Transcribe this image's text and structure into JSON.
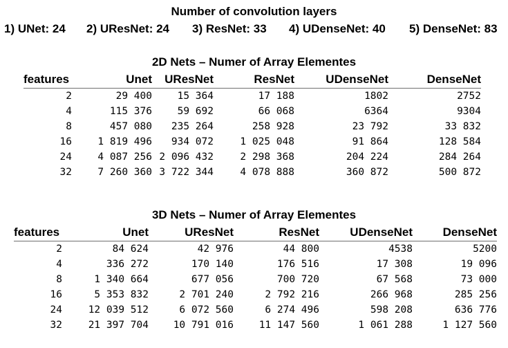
{
  "header": {
    "title": "Number of convolution layers",
    "layers": [
      "1)  UNet: 24",
      "2)  UResNet: 24",
      "3)  ResNet: 33",
      "4)  UDenseNet: 40",
      "5)  DenseNet: 83"
    ]
  },
  "tables": [
    {
      "title": "2D Nets – Numer of Array Elementes",
      "columns": [
        "features",
        "Unet",
        "UResNet",
        "ResNet",
        "UDenseNet",
        "DenseNet"
      ],
      "rows": [
        [
          "2",
          "29 400",
          "15 364",
          "17 188",
          "1802",
          "2752"
        ],
        [
          "4",
          "115 376",
          "59 692",
          "66 068",
          "6364",
          "9304"
        ],
        [
          "8",
          "457 080",
          "235 264",
          "258 928",
          "23 792",
          "33 832"
        ],
        [
          "16",
          "1 819 496",
          "934 072",
          "1 025 048",
          "91 864",
          "128 584"
        ],
        [
          "24",
          "4 087 256",
          "2 096 432",
          "2 298 368",
          "204 224",
          "284 264"
        ],
        [
          "32",
          "7 260 360",
          "3 722 344",
          "4 078 888",
          "360 872",
          "500 872"
        ]
      ]
    },
    {
      "title": "3D Nets – Numer of Array Elementes",
      "columns": [
        "features",
        "Unet",
        "UResNet",
        "ResNet",
        "UDenseNet",
        "DenseNet"
      ],
      "rows": [
        [
          "2",
          "84 624",
          "42 976",
          "44 800",
          "4538",
          "5200"
        ],
        [
          "4",
          "336 272",
          "170 140",
          "176 516",
          "17 308",
          "19 096"
        ],
        [
          "8",
          "1 340 664",
          "677 056",
          "700 720",
          "67 568",
          "73 000"
        ],
        [
          "16",
          "5 353 832",
          "2 701 240",
          "2 792 216",
          "266 968",
          "285 256"
        ],
        [
          "24",
          "12 039 512",
          "6 072 560",
          "6 274 496",
          "598 208",
          "636 776"
        ],
        [
          "32",
          "21 397 704",
          "10 791 016",
          "11 147 560",
          "1 061 288",
          "1 127 560"
        ]
      ]
    }
  ]
}
